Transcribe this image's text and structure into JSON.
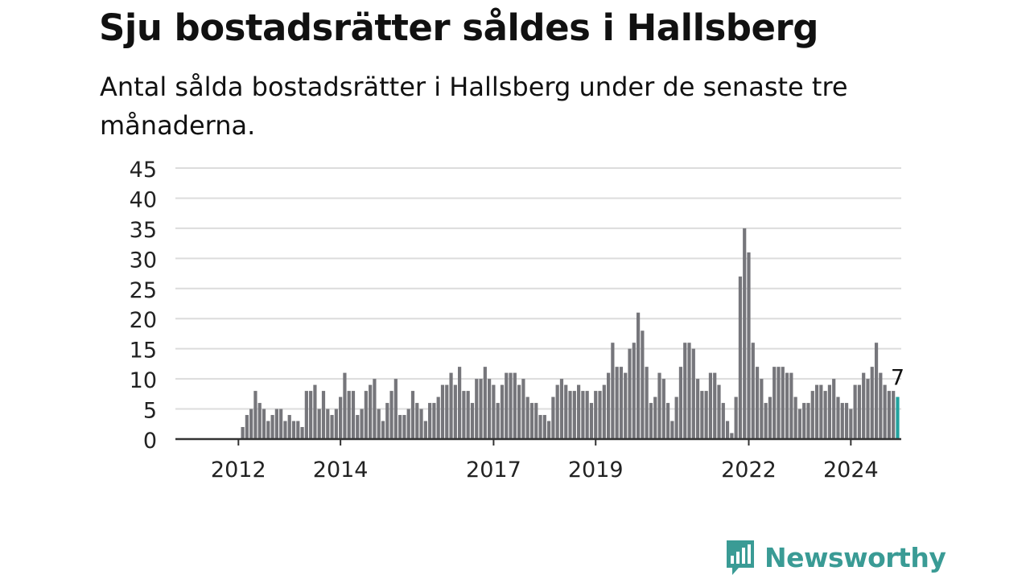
{
  "title": "Sju bostadsrätter såldes i Hallsberg",
  "subtitle": "Antal sålda bostadsrätter i Hallsberg under de senaste tre månaderna.",
  "brand": {
    "name": "Newsworthy"
  },
  "colors": {
    "bar": "#76767b",
    "highlight": "#22a39f",
    "grid": "#dcdcdc",
    "axis": "#333333",
    "brand": "#3a9b95"
  },
  "chart_data": {
    "type": "bar",
    "title": "Sju bostadsrätter såldes i Hallsberg",
    "subtitle": "Antal sålda bostadsrätter i Hallsberg under de senaste tre månaderna.",
    "xlabel": "",
    "ylabel": "",
    "ylim": [
      0,
      45
    ],
    "yticks": [
      0,
      5,
      10,
      15,
      20,
      25,
      30,
      35,
      40,
      45
    ],
    "x_start": "2011-06",
    "frequency": "monthly",
    "xtick_labels": [
      {
        "label": "2012",
        "index": 7
      },
      {
        "label": "2014",
        "index": 31
      },
      {
        "label": "2017",
        "index": 67
      },
      {
        "label": "2019",
        "index": 91
      },
      {
        "label": "2022",
        "index": 127
      },
      {
        "label": "2024",
        "index": 151
      }
    ],
    "values": [
      0,
      0,
      0,
      0,
      0,
      0,
      0,
      0,
      2,
      4,
      5,
      8,
      6,
      5,
      3,
      4,
      5,
      5,
      3,
      4,
      3,
      3,
      2,
      8,
      8,
      9,
      5,
      8,
      5,
      4,
      5,
      7,
      11,
      8,
      8,
      4,
      5,
      8,
      9,
      10,
      5,
      3,
      6,
      8,
      10,
      4,
      4,
      5,
      8,
      6,
      5,
      3,
      6,
      6,
      7,
      9,
      9,
      11,
      9,
      12,
      8,
      8,
      6,
      10,
      10,
      12,
      10,
      9,
      6,
      9,
      11,
      11,
      11,
      9,
      10,
      7,
      6,
      6,
      4,
      4,
      3,
      7,
      9,
      10,
      9,
      8,
      8,
      9,
      8,
      8,
      6,
      8,
      8,
      9,
      11,
      16,
      12,
      12,
      11,
      15,
      16,
      21,
      18,
      12,
      6,
      7,
      11,
      10,
      6,
      3,
      7,
      12,
      16,
      16,
      15,
      10,
      8,
      8,
      11,
      11,
      9,
      6,
      3,
      1,
      7,
      27,
      35,
      31,
      16,
      12,
      10,
      6,
      7,
      12,
      12,
      12,
      11,
      11,
      7,
      5,
      6,
      6,
      8,
      9,
      9,
      8,
      9,
      10,
      7,
      6,
      6,
      5,
      9,
      9,
      11,
      10,
      12,
      16,
      11,
      9,
      8,
      8,
      7
    ],
    "highlight_last": true,
    "annotations": [
      {
        "text": "7",
        "target": "last"
      }
    ],
    "grid": true,
    "legend": "none"
  }
}
